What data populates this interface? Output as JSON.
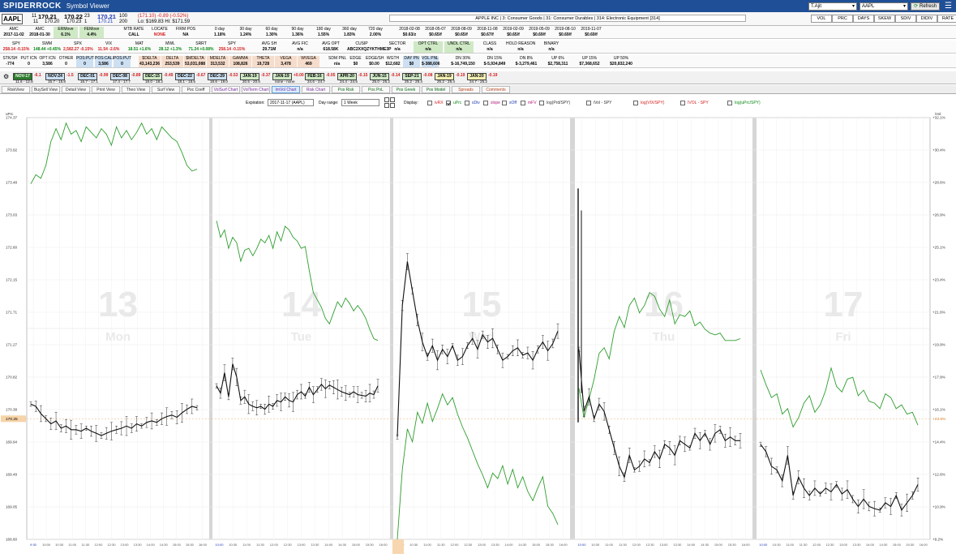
{
  "titlebar": {
    "app": "SPIDERROCK",
    "window": "Symbol Viewer",
    "account_select": "T.Ajit",
    "symbol_select": "AAPL",
    "refresh_label": "Refresh"
  },
  "symbol": {
    "ticker": "AAPL",
    "bid_size": "11",
    "bid": "170.21",
    "ask": "170.22",
    "ask_size": "23",
    "last": "170.21",
    "last_size": "100",
    "bid_size2": "11",
    "bid2": "170.20",
    "ask2": "170.23",
    "ask_size2": "1",
    "last2": "170.21",
    "last_size2": "200",
    "change": "(171.10) -0.89 (-0.52%)",
    "range": "Lo: $169.83  Hi: $171.59"
  },
  "company": "APPLE INC | 3: Consumer Goods | 31: Consumer Durables | 314: Electronic Equipment [314]",
  "right_tabs": [
    "VOL",
    "PRC",
    "DAYS",
    "SKEW",
    "SDIV",
    "DIDIV",
    "RATE"
  ],
  "stats_row1": [
    {
      "h": "AMC",
      "v": "2017-11-02"
    },
    {
      "h": "AMC",
      "v": "2018-01-30"
    },
    {
      "h": "ERMove",
      "v": "6.1%",
      "c": "g"
    },
    {
      "h": "FEMove",
      "v": "4.4%",
      "c": "g"
    },
    {
      "h": "MTB RATE",
      "v": "CALL"
    },
    {
      "h": "LOCATE",
      "v": "NONE",
      "red": true
    },
    {
      "h": "FIRM POS",
      "v": "NA"
    },
    {
      "h": "0 day",
      "v": "1.18%"
    },
    {
      "h": "30 day",
      "v": "1.24%"
    },
    {
      "h": "60 day",
      "v": "1.30%"
    },
    {
      "h": "90 day",
      "v": "1.36%"
    },
    {
      "h": "180 day",
      "v": "1.55%"
    },
    {
      "h": "360 day",
      "v": "1.83%"
    },
    {
      "h": "720 day",
      "v": "2.00%"
    },
    {
      "h": "2018-02-08",
      "v": "$0.63/z"
    },
    {
      "h": "2018-05-07",
      "v": "$0.65/f"
    },
    {
      "h": "2018-08-09",
      "v": "$0.65/f"
    },
    {
      "h": "2018-11-08",
      "v": "$0.67/f"
    },
    {
      "h": "2019-02-09",
      "v": "$0.65/f"
    },
    {
      "h": "2019-05-09",
      "v": "$0.69/f"
    },
    {
      "h": "2019-08-10",
      "v": "$0.69/f"
    },
    {
      "h": "2019-11-07",
      "v": "$0.69/f"
    }
  ],
  "stats_row2": [
    {
      "h": "SPY",
      "v": "258.14 -0.15%"
    },
    {
      "h": "SWM",
      "v": "148.44 +0.45%"
    },
    {
      "h": "SPX",
      "v": "2,582.27 -0.15%"
    },
    {
      "h": "VIX",
      "v": "11.54 -2.6%"
    },
    {
      "h": "MAT",
      "v": "18.51 +1.6%"
    },
    {
      "h": "MWL",
      "v": "28.12 +1.3%"
    },
    {
      "h": "SRRT",
      "v": "71.24 +0.08%"
    },
    {
      "h": "SPY",
      "v": "258.14 -0.15%"
    },
    {
      "h": "AVG SH",
      "v": "29.71M"
    },
    {
      "h": "AVG FIC",
      "v": "n/a"
    },
    {
      "h": "AVG OPT",
      "v": "618.58K"
    },
    {
      "h": "CUSIP",
      "v": "ABC2XXQZYKTHME3P"
    },
    {
      "h": "SECTOR",
      "v": "n/a"
    },
    {
      "h": "OPT CTRL",
      "v": "n/a",
      "c": "g"
    },
    {
      "h": "UNDL CTRL",
      "v": "n/a",
      "c": "g"
    },
    {
      "h": "CLASS",
      "v": "n/a"
    },
    {
      "h": "HOLD REASON",
      "v": "n/a"
    },
    {
      "h": "BINARY",
      "v": "n/a"
    }
  ],
  "stats_row3": [
    {
      "h": "STK/SH",
      "v": "-774"
    },
    {
      "h": "PUT ICN",
      "v": "0"
    },
    {
      "h": "OPT ICN",
      "v": "3,586"
    },
    {
      "h": "OTHER",
      "v": "0"
    },
    {
      "h": "POS:PUT",
      "v": "0",
      "c": "b"
    },
    {
      "h": "POS:CALL",
      "v": "3,586",
      "c": "b"
    },
    {
      "h": "POS:PUT",
      "v": "0",
      "c": "b"
    },
    {
      "h": "$DELTA",
      "v": "43,143,236",
      "c": "o"
    },
    {
      "h": "DELTA",
      "v": "253,539",
      "c": "o"
    },
    {
      "h": "$MDELTA",
      "v": "53,031,088",
      "c": "o"
    },
    {
      "h": "MDELTA",
      "v": "313,532",
      "c": "o"
    },
    {
      "h": "GAMMA",
      "v": "108,826",
      "c": "o"
    },
    {
      "h": "THETA",
      "v": "19,728",
      "c": "o"
    },
    {
      "h": "VEGA",
      "v": "3,478",
      "c": "o"
    },
    {
      "h": "WVEGA",
      "v": "469",
      "c": "o"
    },
    {
      "h": "SDM PNL",
      "v": "n/a"
    },
    {
      "h": "EDGE",
      "v": "$0"
    },
    {
      "h": "EDGE/SH",
      "v": "$0.00"
    },
    {
      "h": "WGTH",
      "v": "$12,682"
    },
    {
      "h": "DAY PN",
      "v": "$0",
      "c": "b"
    },
    {
      "h": "VOL PNL",
      "v": "$-388,606",
      "c": "b"
    },
    {
      "h": "DN 30%",
      "v": "$-16,749,150"
    },
    {
      "h": "DN 15%",
      "v": "$-5,934,849"
    },
    {
      "h": "DN 8%",
      "v": "$-3,279,461"
    },
    {
      "h": "UP 6%",
      "v": "$2,758,311"
    },
    {
      "h": "UP 15%",
      "v": "$7,368,652"
    },
    {
      "h": "UP 50%",
      "v": "$20,832,240"
    }
  ],
  "expirations": [
    {
      "m": "NOV-17",
      "d": "-6.1",
      "r": "11.6 - 12.8",
      "c": "#2d7d2d",
      "fg": "#fff"
    },
    {
      "m": "NOV-24",
      "d": "-1.5",
      "r": "15.7 - 15.8",
      "c": "#cde0f3"
    },
    {
      "m": "DEC-01",
      "d": "-0.99",
      "r": "16.7 - 17.1",
      "c": "#cde0f3"
    },
    {
      "m": "DEC-08",
      "d": "-0.89",
      "r": "17.4 - 17.7",
      "c": "#cde0f3"
    },
    {
      "m": "DEC-15",
      "d": "-0.49",
      "r": "18.0 - 18.2",
      "c": "#cfe9c5"
    },
    {
      "m": "DEC-22",
      "d": "-0.67",
      "r": "18.1 - 18.5",
      "c": "#cde0f3"
    },
    {
      "m": "DEC-29",
      "d": "-0.53",
      "r": "18.6 - 19.0",
      "c": "#cde0f3"
    },
    {
      "m": "JAN-19",
      "d": "-0.37",
      "r": "20.5 - 20.6",
      "c": "#cfe9c5"
    },
    {
      "m": "JAN-19",
      "d": "+0.00",
      "r": "none - none",
      "c": "#cfe9c5"
    },
    {
      "m": "FEB-16",
      "d": "-0.05",
      "r": "24.6 - 24.7",
      "c": "#cfe9c5"
    },
    {
      "m": "APR-20",
      "d": "-0.15",
      "r": "24.4 - 24.5",
      "c": "#cfe9c5"
    },
    {
      "m": "JUN-15",
      "d": "-0.14",
      "r": "25.0 - 25.2",
      "c": "#cfe9c5"
    },
    {
      "m": "SEP-21",
      "d": "-0.08",
      "r": "25.2 - 25.4",
      "c": "#cfe9c5"
    },
    {
      "m": "JAN-19",
      "d": "-0.19",
      "r": "25.2 - 25.4",
      "c": "#f3f0b4"
    },
    {
      "m": "JAN-20",
      "d": "-0.19",
      "r": "24.7 - 25.2",
      "c": "#f3f0b4"
    }
  ],
  "tabs": [
    "RiskView",
    "BuySell View",
    "Detail View",
    "Print View",
    "Theo View",
    "Surf View",
    "Poc Coeff",
    "VolSurf Chart",
    "VolTerm Chart",
    "ImVol Chart",
    "Risk Chart",
    "Pos Risk",
    "Pos PnL",
    "Pos Greek",
    "Pos Model",
    "Spreads",
    "Comments"
  ],
  "active_tab": "ImVol Chart",
  "controls": {
    "expiration_label": "Expiration:",
    "expiration_value": "2017-11-17 (AAPL)",
    "dayrange_label": "Day range:",
    "dayrange_value": "1 Week",
    "display_label": "Display:",
    "toggles": [
      {
        "label": "ivRX",
        "on": false,
        "color": "#d61c1c"
      },
      {
        "label": "uPrc",
        "on": true,
        "color": "#0a8a14"
      },
      {
        "label": "sDiv",
        "on": false,
        "color": "#1b39b5"
      },
      {
        "label": "slope",
        "on": false,
        "color": "#b5197a"
      },
      {
        "label": "sOff",
        "on": false,
        "color": "#1b39b5"
      },
      {
        "label": "mFV",
        "on": false,
        "color": "#b5197a"
      },
      {
        "label": "log(Prd/SPY)",
        "on": false,
        "color": "#333"
      },
      {
        "label": "iVol - SPY",
        "on": false,
        "color": "#333"
      },
      {
        "label": "log(VIX/SPY)",
        "on": false,
        "color": "#d61c1c"
      },
      {
        "label": "IVOL - SPY",
        "on": false,
        "color": "#d61c1c"
      },
      {
        "label": "log(uPrc/SPY)",
        "on": false,
        "color": "#0a8a14"
      }
    ]
  },
  "chart_data": {
    "type": "line",
    "left_axis_label": "uPrc",
    "right_axis_label": "iVol",
    "left_ticks": [
      "174.37",
      "173.92",
      "173.48",
      "173.03",
      "172.60",
      "172.15",
      "171.71",
      "171.27",
      "170.82",
      "170.38",
      "169.94",
      "169.49",
      "169.05",
      "168.60"
    ],
    "right_ticks": [
      "+32.1%",
      "+30.4%",
      "+28.6%",
      "+26.9%",
      "+25.1%",
      "+23.4%",
      "+21.6%",
      "+19.9%",
      "+17.9%",
      "+16.1%",
      "+14.4%",
      "+12.6%",
      "+10.9%",
      "+9.2%"
    ],
    "price_marker": "170.25",
    "ivol_marker": "+23.6%",
    "days": [
      {
        "num": "13",
        "name": "Mon",
        "ticks": [
          "9:30",
          "10:00",
          "10:30",
          "11:00",
          "11:30",
          "12:00",
          "12:30",
          "13:00",
          "13:30",
          "14:00",
          "14:30",
          "15:00",
          "15:30",
          "16:00"
        ]
      },
      {
        "num": "14",
        "name": "Tue",
        "ticks": [
          "10:00",
          "10:30",
          "11:00",
          "11:30",
          "12:00",
          "12:30",
          "13:00",
          "13:30",
          "14:00",
          "14:30",
          "15:00",
          "15:30",
          "16:00"
        ]
      },
      {
        "num": "15",
        "name": "Wed",
        "ticks": [
          "10:00",
          "10:30",
          "11:00",
          "11:30",
          "12:00",
          "12:30",
          "13:00",
          "13:30",
          "14:00",
          "14:30",
          "15:00",
          "15:30",
          "16:00"
        ]
      },
      {
        "num": "16",
        "name": "Thu",
        "ticks": [
          "10:00",
          "10:30",
          "11:00",
          "11:30",
          "12:00",
          "12:30",
          "13:00",
          "13:30",
          "14:00",
          "14:30",
          "15:00",
          "15:30",
          "16:00"
        ]
      },
      {
        "num": "17",
        "name": "Fri",
        "ticks": [
          "10:00",
          "10:30",
          "11:00",
          "11:30",
          "12:00",
          "12:30",
          "13:00",
          "13:30",
          "14:00",
          "14:30",
          "15:00",
          "15:30",
          "16:00"
        ]
      }
    ],
    "ivol_series": [
      [
        28.5,
        29.0,
        28.8,
        29.5,
        30.8,
        31.5,
        30.9,
        31.8,
        31.2,
        31.4,
        30.8,
        31.6,
        31.3,
        31.0,
        31.5,
        31.2,
        30.6,
        31.6,
        31.0,
        31.4,
        30.9,
        31.3,
        31.8,
        31.2,
        31.5,
        30.9,
        31.6,
        31.3,
        31.0,
        30.8,
        30.2,
        29.5,
        29.2,
        29.3
      ],
      [
        26.5,
        25.6,
        26.0,
        25.0,
        25.6,
        25.3,
        24.3,
        24.9,
        25.0,
        24.6,
        25.0,
        25.5,
        25.3,
        25.7,
        25.0,
        25.9,
        25.4,
        26.2,
        26.0,
        25.6,
        25.4,
        25.0,
        25.1,
        23.8,
        22.6,
        22.2,
        21.8,
        21.2,
        20.9,
        21.5,
        22.1,
        21.8,
        22.3,
        22.0,
        21.6,
        21.9,
        21.6,
        21.2,
        20.6,
        20.1,
        20.0
      ],
      [
        9.2,
        13.0,
        15.2,
        14.5,
        16.1,
        15.5,
        16.6,
        15.6,
        16.3,
        17.1,
        16.5,
        16.9,
        16.0,
        15.3,
        14.7,
        14.0,
        13.3,
        12.7,
        12.0,
        12.8,
        12.5,
        13.2,
        12.2,
        13.0,
        12.0,
        12.6,
        11.8,
        11.3,
        12.0,
        12.6,
        11.0,
        10.6,
        10.0
      ],
      [
        17.4,
        15.8,
        16.8,
        17.9,
        19.3,
        19.6,
        19.0,
        20.5,
        21.3,
        20.7,
        21.9,
        22.3,
        21.5,
        21.9,
        22.6,
        22.4,
        21.7,
        21.3,
        22.2,
        20.9,
        21.4,
        21.3,
        21.6,
        20.8,
        21.0,
        20.6,
        20.4,
        20.3,
        20.4,
        20.0,
        20.0,
        20.0,
        20.1
      ],
      [
        18.4,
        17.6,
        16.9,
        17.1,
        16.0,
        16.3,
        15.3,
        15.8,
        16.6,
        17.0,
        16.1,
        16.5,
        17.3,
        18.5,
        17.5,
        17.2,
        17.9,
        18.0,
        17.0,
        17.3,
        16.7,
        16.6,
        16.3,
        17.1,
        16.9,
        16.3,
        16.5,
        16.0,
        16.1,
        15.4
      ]
    ],
    "price_series": [
      [
        170.45,
        170.42,
        170.32,
        170.25,
        170.18,
        170.22,
        170.12,
        170.15,
        170.1,
        170.1,
        170.08,
        170.12,
        170.08,
        170.05,
        170.02,
        170.05,
        170.08,
        170.1,
        170.12,
        170.15,
        170.12,
        170.18,
        170.15,
        170.2,
        170.22,
        170.2,
        170.25,
        170.28,
        170.3,
        170.27,
        170.33,
        170.38,
        170.42,
        170.4
      ],
      [
        170.7,
        170.6,
        170.88,
        170.55,
        171.0,
        170.82,
        170.5,
        170.55,
        170.45,
        170.42,
        170.4,
        170.42,
        170.38,
        170.45,
        170.42,
        170.5,
        170.48,
        170.55,
        170.5,
        170.48,
        170.58,
        170.62,
        170.56,
        170.68,
        170.58,
        170.65,
        170.72,
        170.66,
        170.71,
        170.68,
        170.65,
        170.62,
        170.6,
        170.58,
        170.62,
        170.58,
        170.57,
        170.56,
        170.6,
        170.58,
        170.7
      ],
      [
        170.0,
        171.8,
        172.4,
        172.0,
        171.6,
        171.3,
        171.1,
        171.25,
        171.05,
        171.2,
        171.1,
        171.25,
        171.05,
        171.1,
        171.25,
        171.35,
        171.2,
        171.4,
        171.3,
        171.35,
        171.2,
        171.05,
        171.1,
        171.18,
        171.22,
        171.12,
        171.15,
        171.05,
        171.2,
        171.3,
        171.18,
        171.28,
        171.45
      ],
      [
        171.2,
        170.35,
        170.55,
        170.25,
        170.45,
        170.35,
        170.1,
        169.85,
        169.6,
        169.45,
        169.75,
        169.55,
        169.6,
        169.7,
        169.65,
        169.8,
        169.7,
        169.9,
        169.85,
        169.75,
        169.95,
        169.9,
        169.85,
        170.05,
        169.95,
        170.05,
        169.9,
        170.05,
        170.1,
        169.95,
        170.0,
        169.95,
        169.95
      ],
      [
        169.9,
        169.8,
        169.6,
        169.55,
        169.4,
        169.75,
        169.2,
        169.45,
        169.3,
        169.2,
        169.3,
        169.22,
        169.3,
        169.25,
        169.35,
        169.22,
        169.28,
        169.15,
        169.05,
        169.15,
        169.05,
        169.02,
        169.0,
        169.1,
        169.05,
        169.2,
        169.0,
        169.1,
        169.2,
        169.35
      ]
    ]
  }
}
